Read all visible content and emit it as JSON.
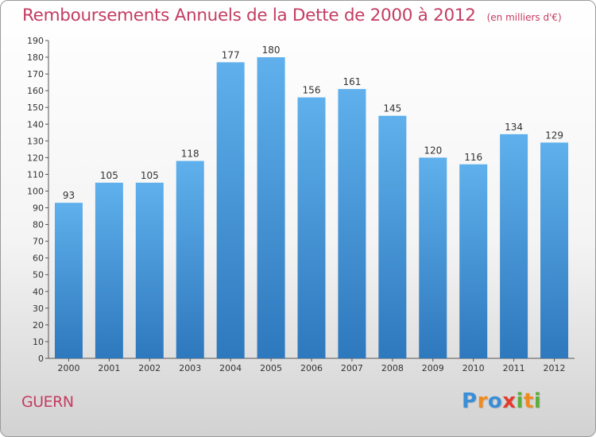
{
  "title": "Remboursements Annuels de la Dette de 2000 à 2012",
  "title_unit": "(en milliers d'€)",
  "commune": "GUERN",
  "logo": {
    "text": "Proxiti",
    "letters": [
      "P",
      "r",
      "o",
      "x",
      "i",
      "t",
      "i"
    ],
    "colors": [
      "#3a8ed6",
      "#ef8b1e",
      "#3a8ed6",
      "#e33b2b",
      "#5aae3a",
      "#ef8b1e",
      "#5aae3a"
    ]
  },
  "colors": {
    "bar": "#3f8fd4",
    "bar_light": "#5aaae8",
    "bar_dark": "#2f74b8",
    "title": "#c43c62"
  },
  "chart_data": {
    "type": "bar",
    "title": "Remboursements Annuels de la Dette de 2000 à 2012",
    "categories": [
      "2000",
      "2001",
      "2002",
      "2003",
      "2004",
      "2005",
      "2006",
      "2007",
      "2008",
      "2009",
      "2010",
      "2011",
      "2012"
    ],
    "values": [
      93,
      105,
      105,
      118,
      177,
      180,
      156,
      161,
      145,
      120,
      116,
      134,
      129
    ],
    "xlabel": "",
    "ylabel": "",
    "ylim": [
      0,
      190
    ],
    "ytick_step": 10,
    "grid": false,
    "data_labels": true
  }
}
